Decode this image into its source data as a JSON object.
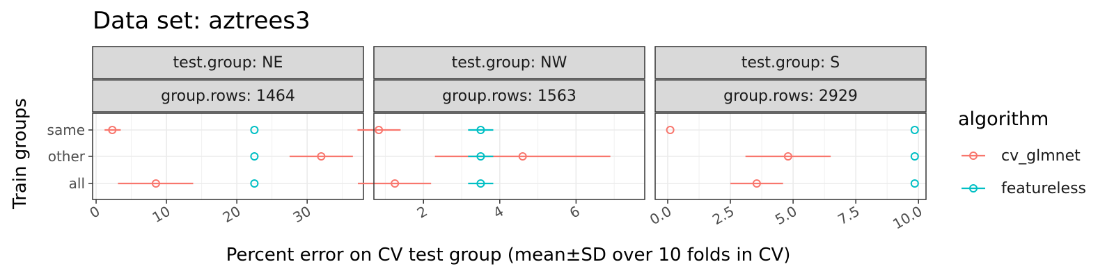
{
  "title": "Data set: aztrees3",
  "ylabel": "Train groups",
  "xlabel": "Percent error on CV test group (mean±SD over 10 folds in CV)",
  "legend": {
    "title": "algorithm",
    "items": [
      {
        "label": "cv_glmnet",
        "color": "#F8766D"
      },
      {
        "label": "featureless",
        "color": "#00BFC4"
      }
    ]
  },
  "chart_data": {
    "type": "scatter",
    "categories": [
      "same",
      "other",
      "all"
    ],
    "series_colors": {
      "cv_glmnet": "#F8766D",
      "featureless": "#00BFC4"
    },
    "panels": [
      {
        "strip1": "test.group: NE",
        "strip2": "group.rows: 1464",
        "xlim": [
          -0.5,
          38
        ],
        "ticks": [
          0,
          10,
          20,
          30
        ],
        "tick_labels": [
          "0",
          "10",
          "20",
          "30"
        ],
        "points": [
          {
            "algorithm": "cv_glmnet",
            "group": "same",
            "mean": 2.3,
            "lo": 1.2,
            "hi": 3.5
          },
          {
            "algorithm": "cv_glmnet",
            "group": "other",
            "mean": 32.0,
            "lo": 27.5,
            "hi": 36.5
          },
          {
            "algorithm": "cv_glmnet",
            "group": "all",
            "mean": 8.5,
            "lo": 3.1,
            "hi": 13.8
          },
          {
            "algorithm": "featureless",
            "group": "same",
            "mean": 22.5,
            "lo": 22.5,
            "hi": 22.5
          },
          {
            "algorithm": "featureless",
            "group": "other",
            "mean": 22.5,
            "lo": 22.5,
            "hi": 22.5
          },
          {
            "algorithm": "featureless",
            "group": "all",
            "mean": 22.5,
            "lo": 22.5,
            "hi": 22.5
          }
        ]
      },
      {
        "strip1": "test.group: NW",
        "strip2": "group.rows: 1563",
        "xlim": [
          0.7,
          7.8
        ],
        "ticks": [
          2,
          4,
          6
        ],
        "tick_labels": [
          "2",
          "4",
          "6"
        ],
        "points": [
          {
            "algorithm": "cv_glmnet",
            "group": "same",
            "mean": 0.83,
            "lo": 0.27,
            "hi": 1.4
          },
          {
            "algorithm": "cv_glmnet",
            "group": "other",
            "mean": 4.6,
            "lo": 2.3,
            "hi": 6.9
          },
          {
            "algorithm": "cv_glmnet",
            "group": "all",
            "mean": 1.25,
            "lo": 0.28,
            "hi": 2.2
          },
          {
            "algorithm": "featureless",
            "group": "same",
            "mean": 3.5,
            "lo": 3.17,
            "hi": 3.83
          },
          {
            "algorithm": "featureless",
            "group": "other",
            "mean": 3.5,
            "lo": 3.17,
            "hi": 3.83
          },
          {
            "algorithm": "featureless",
            "group": "all",
            "mean": 3.5,
            "lo": 3.17,
            "hi": 3.83
          }
        ]
      },
      {
        "strip1": "test.group: S",
        "strip2": "group.rows: 2929",
        "xlim": [
          -0.5,
          10.3
        ],
        "ticks": [
          0,
          2.5,
          5,
          7.5,
          10
        ],
        "tick_labels": [
          "0.0",
          "2.5",
          "5.0",
          "7.5",
          "10.0"
        ],
        "points": [
          {
            "algorithm": "cv_glmnet",
            "group": "same",
            "mean": 0.1,
            "lo": 0.1,
            "hi": 0.1
          },
          {
            "algorithm": "cv_glmnet",
            "group": "other",
            "mean": 4.8,
            "lo": 3.1,
            "hi": 6.5
          },
          {
            "algorithm": "cv_glmnet",
            "group": "all",
            "mean": 3.55,
            "lo": 2.5,
            "hi": 4.6
          },
          {
            "algorithm": "featureless",
            "group": "same",
            "mean": 9.85,
            "lo": 9.85,
            "hi": 9.85
          },
          {
            "algorithm": "featureless",
            "group": "other",
            "mean": 9.85,
            "lo": 9.85,
            "hi": 9.85
          },
          {
            "algorithm": "featureless",
            "group": "all",
            "mean": 9.85,
            "lo": 9.85,
            "hi": 9.85
          }
        ]
      }
    ]
  }
}
